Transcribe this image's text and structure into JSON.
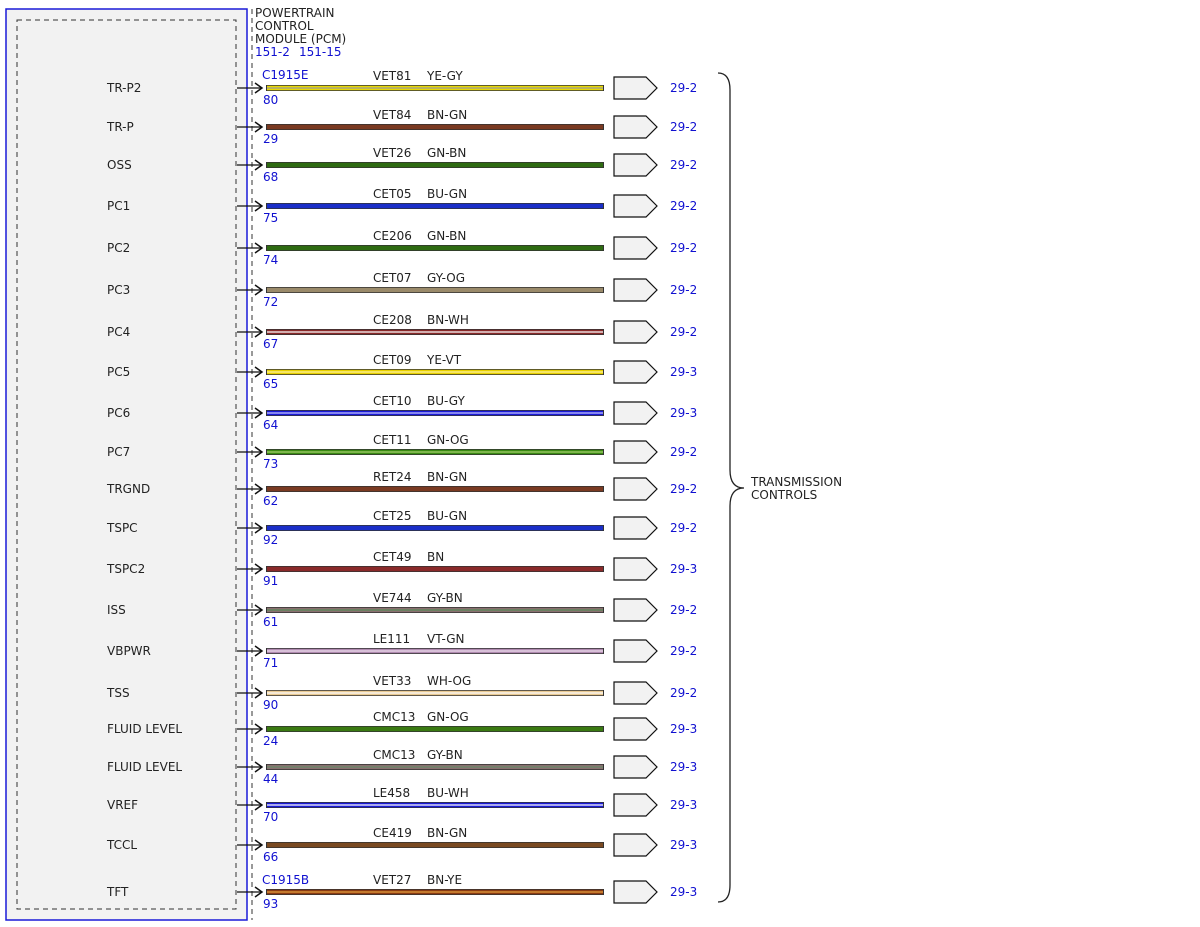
{
  "module": {
    "title_lines": [
      "POWERTRAIN",
      "CONTROL",
      "MODULE (PCM)"
    ],
    "refs": [
      "151-2",
      "151-15"
    ],
    "colors": {
      "border": "#1a1ad8",
      "fill": "#f2f2f2",
      "dashed": "#333333"
    }
  },
  "connectors": [
    {
      "name": "C1915E",
      "row": 0
    },
    {
      "name": "C1915B",
      "row": 20
    }
  ],
  "group_label": [
    "TRANSMISSION",
    "CONTROLS"
  ],
  "wires": [
    {
      "signal": "TR-P2",
      "pin": "80",
      "circuit": "VET81",
      "color_code": "YE-GY",
      "page_ref": "29-2",
      "base": "#e8d800",
      "stripe": "#9a9a9a"
    },
    {
      "signal": "TR-P",
      "pin": "29",
      "circuit": "VET84",
      "color_code": "BN-GN",
      "page_ref": "29-2",
      "base": "#7a3a22",
      "stripe": "#7a3a22"
    },
    {
      "signal": "OSS",
      "pin": "68",
      "circuit": "VET26",
      "color_code": "GN-BN",
      "page_ref": "29-2",
      "base": "#2f6b12",
      "stripe": "#2f6b12"
    },
    {
      "signal": "PC1",
      "pin": "75",
      "circuit": "CET05",
      "color_code": "BU-GN",
      "page_ref": "29-2",
      "base": "#1a2ec8",
      "stripe": "#1a2ec8"
    },
    {
      "signal": "PC2",
      "pin": "74",
      "circuit": "CE206",
      "color_code": "GN-BN",
      "page_ref": "29-2",
      "base": "#2f6b12",
      "stripe": "#2f6b12"
    },
    {
      "signal": "PC3",
      "pin": "72",
      "circuit": "CET07",
      "color_code": "GY-OG",
      "page_ref": "29-2",
      "base": "#9a8a6a",
      "stripe": "#9a8a6a"
    },
    {
      "signal": "PC4",
      "pin": "67",
      "circuit": "CE208",
      "color_code": "BN-WH",
      "page_ref": "29-2",
      "base": "#8a2a2a",
      "stripe": "#ffffff"
    },
    {
      "signal": "PC5",
      "pin": "65",
      "circuit": "CET09",
      "color_code": "YE-VT",
      "page_ref": "29-3",
      "base": "#e8d000",
      "stripe": "#fff3a0"
    },
    {
      "signal": "PC6",
      "pin": "64",
      "circuit": "CET10",
      "color_code": "BU-GY",
      "page_ref": "29-3",
      "base": "#1a1ad8",
      "stripe": "#c8c8ff"
    },
    {
      "signal": "PC7",
      "pin": "73",
      "circuit": "CET11",
      "color_code": "GN-OG",
      "page_ref": "29-2",
      "base": "#3a8a12",
      "stripe": "#a8d070"
    },
    {
      "signal": "TRGND",
      "pin": "62",
      "circuit": "RET24",
      "color_code": "BN-GN",
      "page_ref": "29-2",
      "base": "#7a3a22",
      "stripe": "#7a3a22"
    },
    {
      "signal": "TSPC",
      "pin": "92",
      "circuit": "CET25",
      "color_code": "BU-GN",
      "page_ref": "29-2",
      "base": "#1a2ec8",
      "stripe": "#1a2ec8"
    },
    {
      "signal": "TSPC2",
      "pin": "91",
      "circuit": "CET49",
      "color_code": "BN",
      "page_ref": "29-3",
      "base": "#8a2a2a",
      "stripe": "#8a2a2a"
    },
    {
      "signal": "ISS",
      "pin": "61",
      "circuit": "VE744",
      "color_code": "GY-BN",
      "page_ref": "29-2",
      "base": "#8a7070",
      "stripe": "#5a8a5a"
    },
    {
      "signal": "VBPWR",
      "pin": "71",
      "circuit": "LE111",
      "color_code": "VT-GN",
      "page_ref": "29-2",
      "base": "#b08ab0",
      "stripe": "#f0e0f0"
    },
    {
      "signal": "TSS",
      "pin": "90",
      "circuit": "VET33",
      "color_code": "WH-OG",
      "page_ref": "29-2",
      "base": "#e8c890",
      "stripe": "#ffffff"
    },
    {
      "signal": "FLUID LEVEL",
      "pin": "24",
      "circuit": "CMC13",
      "color_code": "GN-OG",
      "page_ref": "29-3",
      "base": "#3a7a12",
      "stripe": "#3a7a12"
    },
    {
      "signal": "FLUID LEVEL",
      "pin": "44",
      "circuit": "CMC13",
      "color_code": "GY-BN",
      "page_ref": "29-3",
      "base": "#8a7070",
      "stripe": "#6a8a6a"
    },
    {
      "signal": "VREF",
      "pin": "70",
      "circuit": "LE458",
      "color_code": "BU-WH",
      "page_ref": "29-3",
      "base": "#1a1ad8",
      "stripe": "#ffffff"
    },
    {
      "signal": "TCCL",
      "pin": "66",
      "circuit": "CE419",
      "color_code": "BN-GN",
      "page_ref": "29-3",
      "base": "#7a4a22",
      "stripe": "#7a4a22"
    },
    {
      "signal": "TFT",
      "pin": "93",
      "circuit": "VET27",
      "color_code": "BN-YE",
      "page_ref": "29-3",
      "base": "#8a3a12",
      "stripe": "#e8a040"
    }
  ]
}
